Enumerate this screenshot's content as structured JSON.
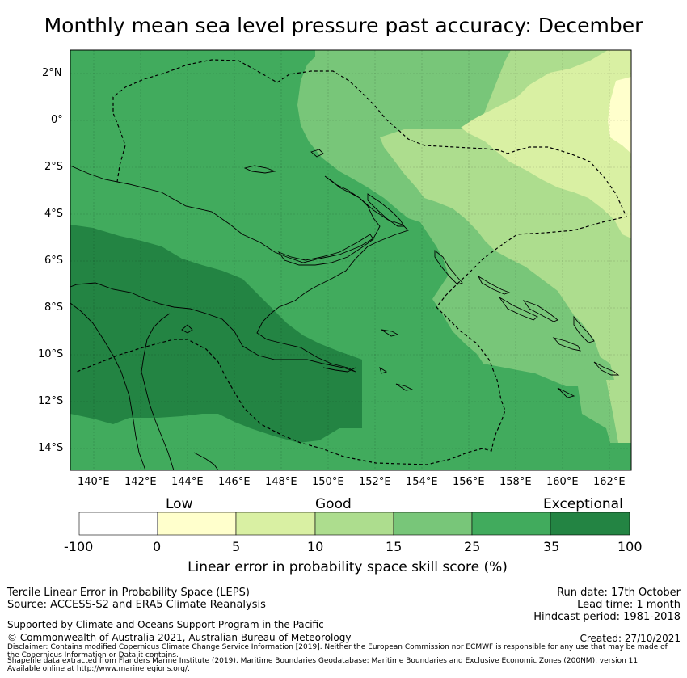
{
  "title": "Monthly mean sea level pressure past accuracy: December",
  "map": {
    "lat_ticks": [
      "2°N",
      "0°",
      "2°S",
      "4°S",
      "6°S",
      "8°S",
      "10°S",
      "12°S",
      "14°S"
    ],
    "lon_ticks": [
      "140°E",
      "142°E",
      "144°E",
      "146°E",
      "148°E",
      "150°E",
      "152°E",
      "154°E",
      "156°E",
      "158°E",
      "160°E",
      "162°E"
    ],
    "lat_range": [
      -15,
      3
    ],
    "lon_range": [
      139,
      163
    ]
  },
  "colorbar": {
    "categories": [
      "Low",
      "Good",
      "Exceptional"
    ],
    "boundaries": [
      "-100",
      "0",
      "5",
      "10",
      "15",
      "25",
      "35",
      "100"
    ],
    "colors": [
      "#ffffff",
      "#ffffcc",
      "#d9f0a3",
      "#addd8e",
      "#78c679",
      "#41ab5d",
      "#238443"
    ],
    "label": "Linear error in probability space skill score (%)"
  },
  "footer": {
    "line1": "Tercile Linear Error in Probability Space (LEPS)",
    "line2": "Source: ACCESS-S2 and ERA5 Climate Reanalysis",
    "support": "Supported by Climate and Oceans Support Program in the Pacific",
    "copyright": "© Commonwealth of Australia 2021, Australian Bureau of Meteorology",
    "run_date": "Run date: 17th October",
    "lead_time": "Lead time: 1 month",
    "hindcast": "Hindcast period: 1981-2018",
    "created": "Created: 27/10/2021",
    "disclaimer1": "Disclaimer: Contains modified Copernicus Climate Change Service Information [2019]. Neither the European Commission nor ECMWF is responsible for any use that may be made of",
    "disclaimer2": "the Copernicus Information or Data it contains.",
    "shapefile1": "Shapefile data extracted from Flanders Marine Institute (2019), Maritime Boundaries Geodatabase: Maritime Boundaries and Exclusive Economic Zones (200NM), version 11.",
    "shapefile2": "Available online at http://www.marineregions.org/."
  }
}
